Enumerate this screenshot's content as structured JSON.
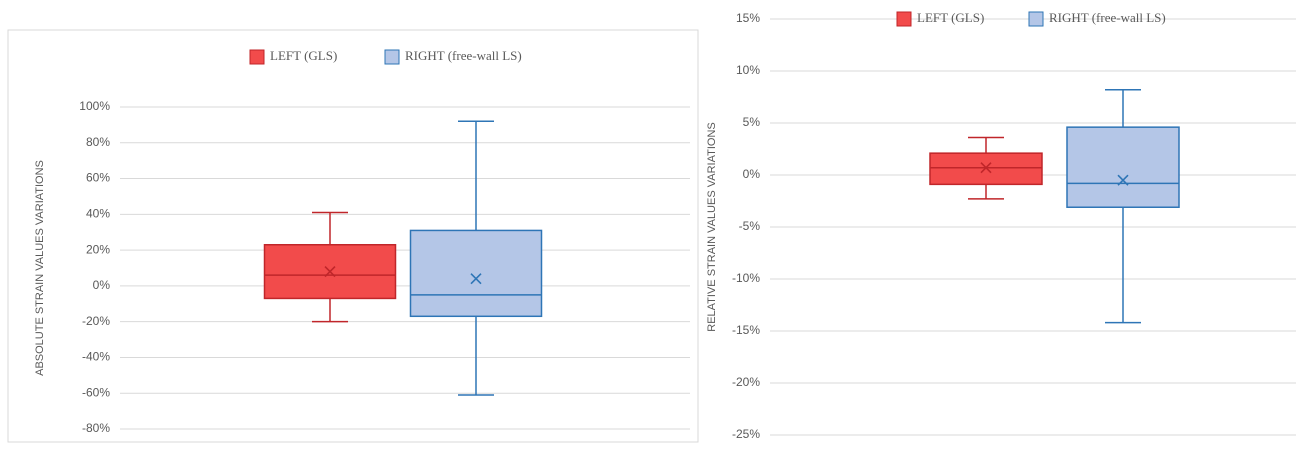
{
  "chart_data": [
    {
      "type": "box",
      "ylabel": "ABSOLUTE STRAIN VALUES VARIATIONS",
      "grid": true,
      "legend": "top",
      "ylim": [
        -80,
        100
      ],
      "yticks": [
        {
          "value": -80,
          "label": "-80%"
        },
        {
          "value": -60,
          "label": "-60%"
        },
        {
          "value": -40,
          "label": "-40%"
        },
        {
          "value": -20,
          "label": "-20%"
        },
        {
          "value": 0,
          "label": "0%"
        },
        {
          "value": 20,
          "label": "20%"
        },
        {
          "value": 40,
          "label": "40%"
        },
        {
          "value": 60,
          "label": "60%"
        },
        {
          "value": 80,
          "label": "80%"
        },
        {
          "value": 100,
          "label": "100%"
        }
      ],
      "series": [
        {
          "name": "LEFT (GLS)",
          "color": "#f24b4b",
          "edgecolor": "#c0262a",
          "min": -20,
          "q1": -7,
          "median": 6,
          "q3": 23,
          "max": 41,
          "mean": 8
        },
        {
          "name": "RIGHT  (free-wall LS)",
          "color": "#b4c6e7",
          "edgecolor": "#2e75b6",
          "min": -61,
          "q1": -17,
          "median": -5,
          "q3": 31,
          "max": 92,
          "mean": 4
        }
      ]
    },
    {
      "type": "box",
      "ylabel": "RELATIVE STRAIN VALUES VARIATIONS",
      "grid": true,
      "legend": "top",
      "ylim": [
        -25,
        15
      ],
      "yticks": [
        {
          "value": -25,
          "label": "-25%"
        },
        {
          "value": -20,
          "label": "-20%"
        },
        {
          "value": -15,
          "label": "-15%"
        },
        {
          "value": -10,
          "label": "-10%"
        },
        {
          "value": -5,
          "label": "-5%"
        },
        {
          "value": 0,
          "label": "0%"
        },
        {
          "value": 5,
          "label": "5%"
        },
        {
          "value": 10,
          "label": "10%"
        },
        {
          "value": 15,
          "label": "15%"
        }
      ],
      "series": [
        {
          "name": "LEFT (GLS)",
          "color": "#f24b4b",
          "edgecolor": "#c0262a",
          "min": -2.3,
          "q1": -0.9,
          "median": 0.7,
          "q3": 2.1,
          "max": 3.6,
          "mean": 0.7
        },
        {
          "name": "RIGHT  (free-wall LS)",
          "color": "#b4c6e7",
          "edgecolor": "#2e75b6",
          "min": -14.2,
          "q1": -3.1,
          "median": -0.8,
          "q3": 4.6,
          "max": 8.2,
          "mean": -0.5
        }
      ]
    }
  ]
}
